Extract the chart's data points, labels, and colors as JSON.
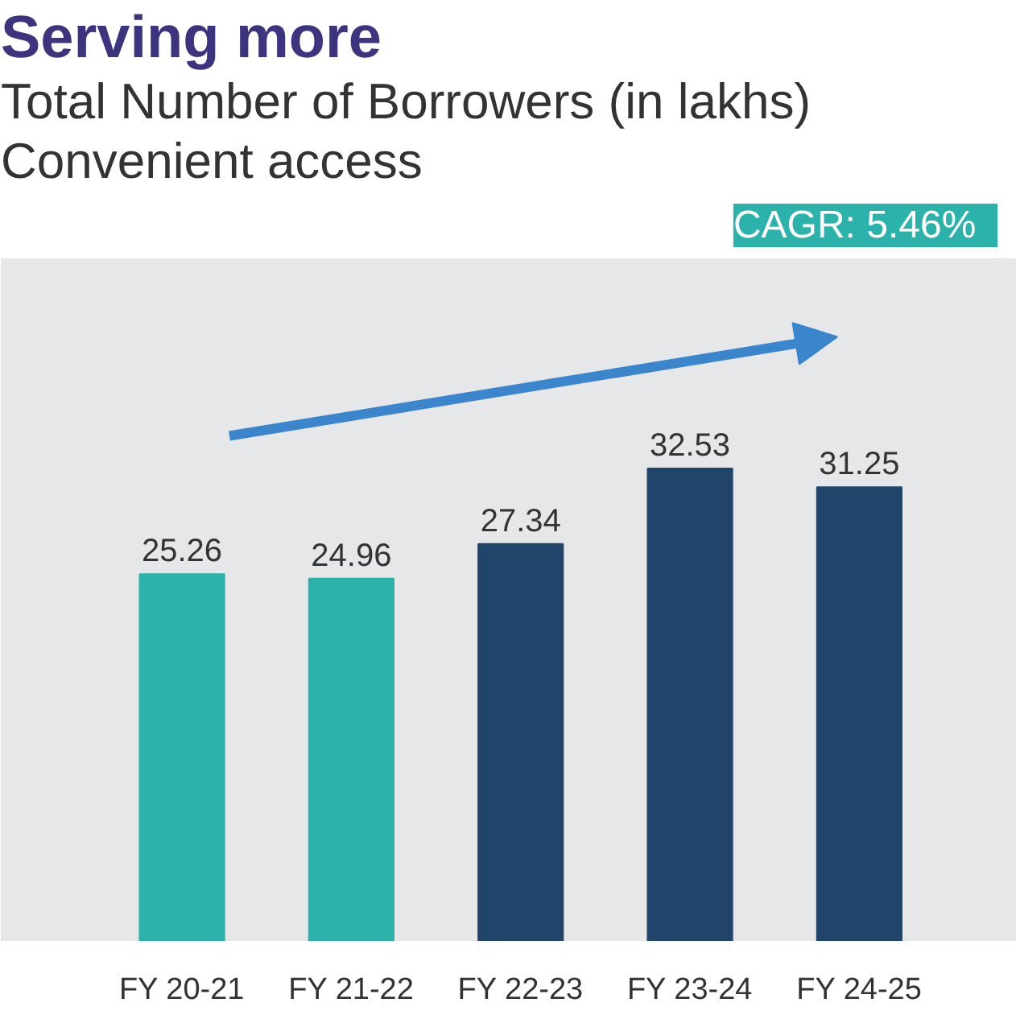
{
  "chart_data": {
    "type": "bar",
    "title": "Serving more",
    "subtitle": "Total Number of Borrowers (in lakhs)",
    "annotations": [
      "Convenient access",
      "CAGR: 5.46%"
    ],
    "categories": [
      "FY 20-21",
      "FY 21-22",
      "FY 22-23",
      "FY 23-24",
      "FY 24-25"
    ],
    "values": [
      25.26,
      24.96,
      27.34,
      32.53,
      31.25
    ],
    "colors": [
      "#2bb3ab",
      "#2bb3ab",
      "#21456a",
      "#21456a",
      "#21456a"
    ],
    "ylim": [
      0,
      47
    ],
    "data_labels": true
  }
}
